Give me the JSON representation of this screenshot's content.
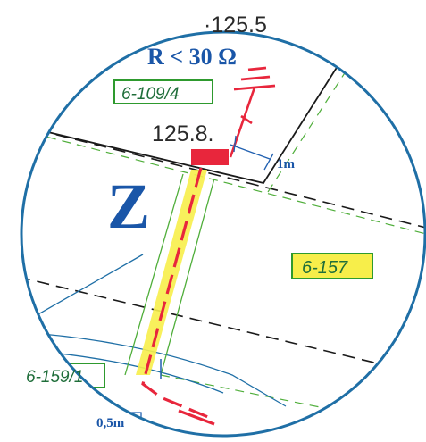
{
  "labels": {
    "elevation_top": "·125.5",
    "resistance": "R < 30 Ω",
    "elevation_mid": "125.8.",
    "zone_letter": "Z",
    "offset_1m": "1m",
    "offset_05m": "0,5m"
  },
  "parcels": {
    "p1": "6-109/4",
    "p2": "6-157",
    "p3": "6-159/1"
  },
  "colors": {
    "circle": "#1f6fa6",
    "cable": "#e8263c",
    "highlight": "#f7ee4a",
    "parcel_border": "#2e9a2e",
    "parcel_text": "#1f6e3a",
    "zone_letter": "#1a56a8",
    "dim_blue": "#1f5fb0",
    "black_line": "#1a1a1a",
    "green_line": "#4fae3a"
  }
}
